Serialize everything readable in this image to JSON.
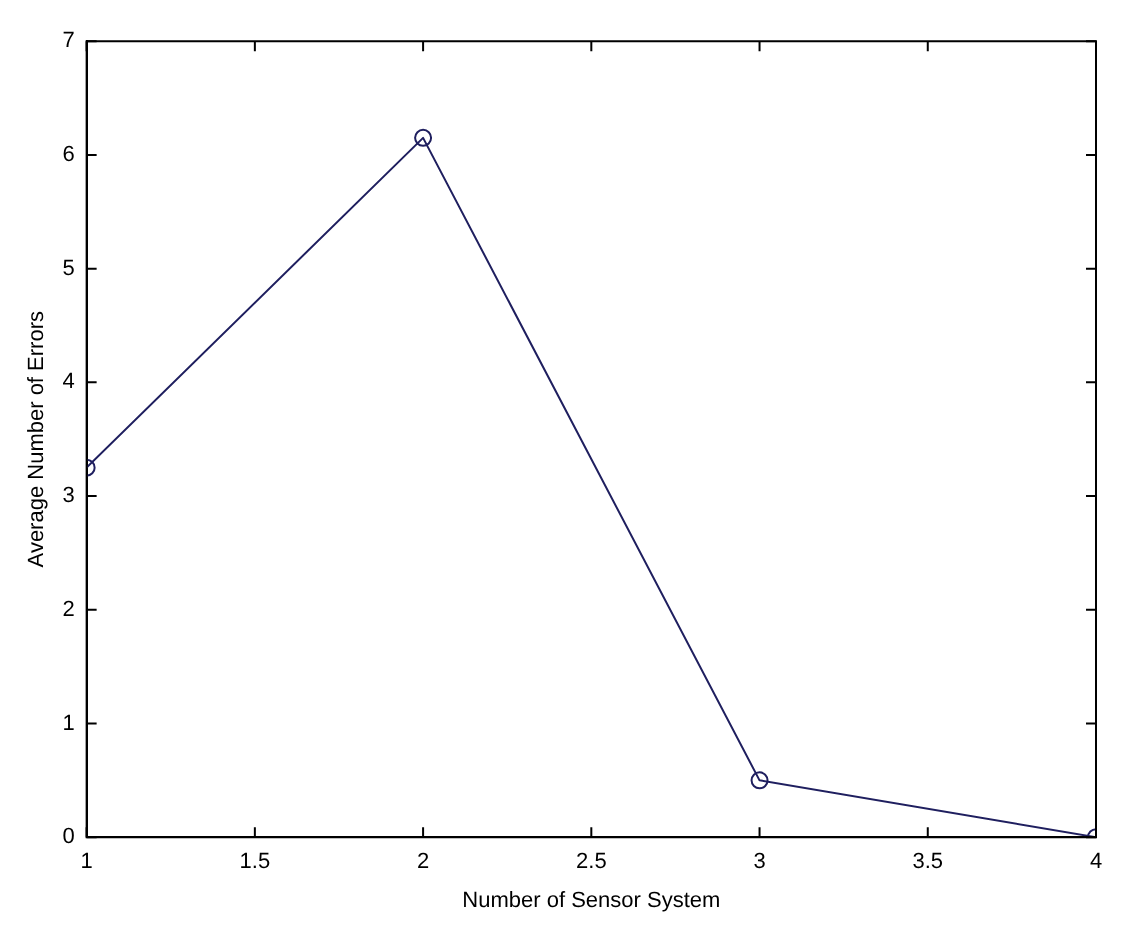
{
  "chart_data": {
    "type": "line",
    "xlabel": "Number of Sensor System",
    "ylabel": "Average Number of Errors",
    "x": [
      1,
      2,
      3,
      4
    ],
    "series": [
      {
        "color": "#1f1f5f",
        "values": [
          3.25,
          6.15,
          0.5,
          0
        ]
      }
    ],
    "xlim": [
      1,
      4
    ],
    "xticks": [
      1,
      1.5,
      2,
      2.5,
      3,
      3.5,
      4
    ],
    "ylim": [
      0,
      7
    ],
    "yticks": [
      0,
      1,
      2,
      3,
      4,
      5,
      6,
      7
    ],
    "grid": false,
    "legend": false,
    "marker": "circle",
    "line_style": "solid"
  }
}
